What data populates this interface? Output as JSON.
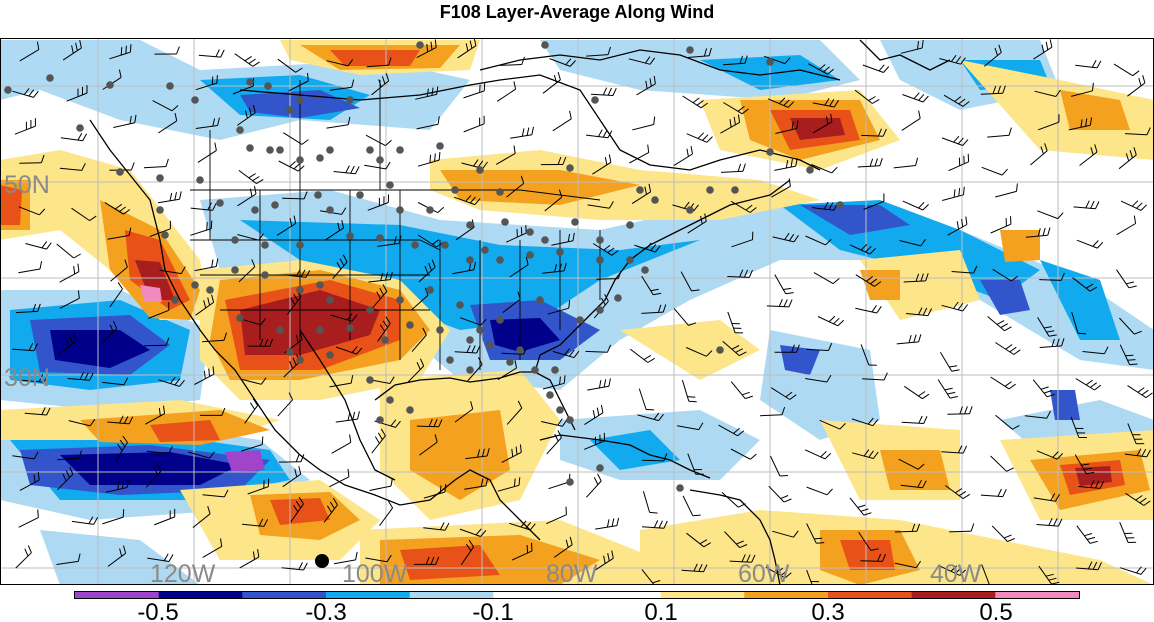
{
  "title": "F108 Layer-Average Along Wind",
  "map": {
    "lat_labels": [
      "50N",
      "30N"
    ],
    "lon_labels": [
      "120W",
      "100W",
      "80W",
      "60W",
      "40W"
    ],
    "label_color": "#8a8a8a",
    "station_color": "#555555",
    "highlight_station_color": "#000000"
  },
  "colorbar": {
    "ticks": [
      "-0.5",
      "-0.3",
      "-0.1",
      "0.1",
      "0.3",
      "0.5"
    ],
    "colors": [
      "#a044cc",
      "#00008b",
      "#3355cc",
      "#11aaee",
      "#aad8f2",
      "#ffffff",
      "#ffffff",
      "#fde58a",
      "#f3a11e",
      "#e85218",
      "#a81e1e",
      "#f08ac0"
    ]
  }
}
